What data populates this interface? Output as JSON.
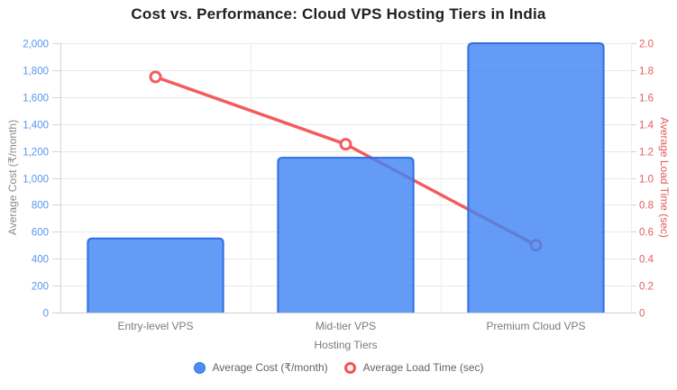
{
  "chart_data": {
    "type": "bar+line",
    "title": "Cost vs. Performance: Cloud VPS Hosting Tiers in India",
    "categories": [
      "Entry-level VPS",
      "Mid-tier VPS",
      "Premium Cloud VPS"
    ],
    "xlabel": "Hosting Tiers",
    "series": [
      {
        "name": "Average Cost (₹/month)",
        "type": "bar",
        "axis": "left",
        "values": [
          550,
          1150,
          2000
        ],
        "fill_color": "#4285f4",
        "fill_opacity": 0.82,
        "border_color": "#2d6fe3"
      },
      {
        "name": "Average Load Time (sec)",
        "type": "line",
        "axis": "right",
        "values": [
          1.75,
          1.25,
          0.5
        ],
        "color": "#f25c5c",
        "point_fill": "#ffffff"
      }
    ],
    "y_left": {
      "label": "Average Cost (₹/month)",
      "min": 0,
      "max": 2000,
      "step": 200,
      "tick_labels": [
        "0",
        "200",
        "400",
        "600",
        "800",
        "1,000",
        "1,200",
        "1,400",
        "1,600",
        "1,800",
        "2,000"
      ],
      "tick_color": "#5796f0",
      "title_color": "#8a8a8a"
    },
    "y_right": {
      "label": "Average Load Time (sec)",
      "min": 0,
      "max": 2,
      "step": 0.2,
      "tick_labels": [
        "0",
        "0.2",
        "0.4",
        "0.6",
        "0.8",
        "1.0",
        "1.2",
        "1.4",
        "1.6",
        "1.8",
        "2.0"
      ],
      "tick_color": "#e65c5c",
      "title_color": "#e65c5c"
    },
    "x_tick_color": "#7a7a7a",
    "grid": true,
    "grid_color": "#e8e8e8",
    "axis_border_color": "#d4d4d4",
    "legend_position": "bottom"
  }
}
